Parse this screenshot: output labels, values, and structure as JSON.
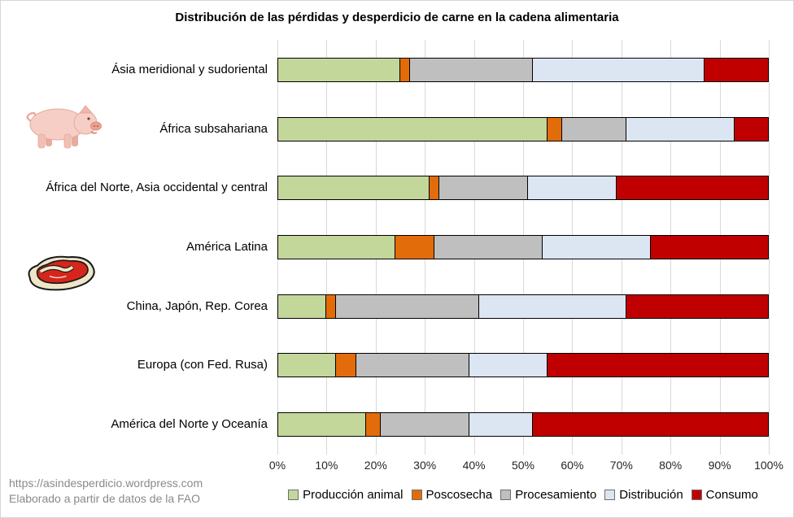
{
  "title": "Distribución de las pérdidas y desperdicio de carne en la cadena alimentaria",
  "footer": {
    "line1": "https://asindesperdicio.wordpress.com",
    "line2": "Elaborado a partir de datos de la FAO"
  },
  "icons": {
    "pig": "pig-clipart",
    "steak": "steak-clipart"
  },
  "colors": {
    "grid": "#d9d9d9",
    "bar_border": "#000000",
    "footer_text": "#8a8a8a",
    "legend_swatch_border": "#6e6e6e"
  },
  "chart_data": {
    "type": "bar",
    "orientation": "horizontal",
    "stacked": true,
    "title": "Distribución de las pérdidas y desperdicio de carne en la cadena alimentaria",
    "categories": [
      "Ásia meridional y sudoriental",
      "África subsahariana",
      "África del Norte, Asia occidental y central",
      "América Latina",
      "China, Japón, Rep. Corea",
      "Europa (con Fed. Rusa)",
      "América del Norte y Oceanía"
    ],
    "series": [
      {
        "name": "Producción animal",
        "color": "#c4d79b",
        "values": [
          25,
          55,
          31,
          24,
          10,
          12,
          18
        ]
      },
      {
        "name": "Poscosecha",
        "color": "#e36c0a",
        "values": [
          2,
          3,
          2,
          8,
          2,
          4,
          3
        ]
      },
      {
        "name": "Procesamiento",
        "color": "#bfbfbf",
        "values": [
          25,
          13,
          18,
          22,
          29,
          23,
          18
        ]
      },
      {
        "name": "Distribución",
        "color": "#dce6f2",
        "values": [
          35,
          22,
          18,
          22,
          30,
          16,
          13
        ]
      },
      {
        "name": "Consumo",
        "color": "#c00000",
        "values": [
          13,
          7,
          31,
          24,
          29,
          45,
          48
        ]
      }
    ],
    "x_ticks": [
      "0%",
      "10%",
      "20%",
      "30%",
      "40%",
      "50%",
      "60%",
      "70%",
      "80%",
      "90%",
      "100%"
    ],
    "xlim": [
      0,
      100
    ],
    "grid": true,
    "legend_position": "bottom"
  }
}
